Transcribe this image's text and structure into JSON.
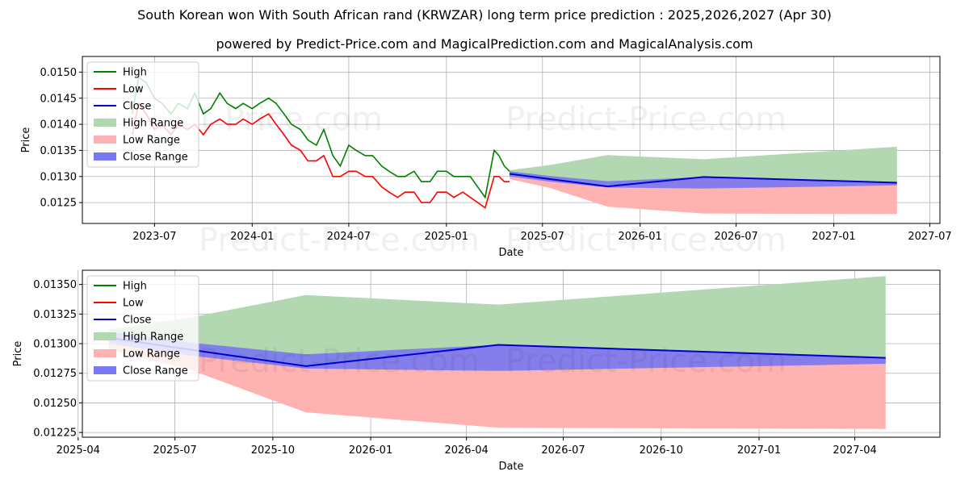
{
  "page": {
    "title": "South Korean won With South African rand (KRWZAR) long term price prediction : 2025,2026,2027 (Apr 30)",
    "subtitle": "powered by Predict-Price.com and MagicalPrediction.com and MagicalAnalysis.com",
    "watermark": "Predict-Price.com"
  },
  "legend": {
    "high": "High",
    "low": "Low",
    "close": "Close",
    "high_range": "High Range",
    "low_range": "Low Range",
    "close_range": "Close Range"
  },
  "colors": {
    "high": "#008000",
    "low": "#ff0000",
    "close": "#0000cc",
    "high_range": "#b2d8b2",
    "low_range": "#ffb2b2",
    "close_range": "#7878f0"
  },
  "chart_data": [
    {
      "type": "line",
      "xlabel": "Date",
      "ylabel": "Price",
      "xlim": [
        "2023-02-15",
        "2027-07-20"
      ],
      "ylim": [
        0.0121,
        0.0153
      ],
      "x_ticks": [
        "2023-07",
        "2024-01",
        "2024-07",
        "2025-01",
        "2025-07",
        "2026-01",
        "2026-07",
        "2027-01",
        "2027-07"
      ],
      "y_ticks": [
        0.0125,
        0.013,
        0.0135,
        0.014,
        0.0145,
        0.015
      ],
      "y_tick_labels": [
        "0.0125",
        "0.0130",
        "0.0135",
        "0.0140",
        "0.0145",
        "0.0150"
      ],
      "grid": true,
      "legend_position": "upper-left",
      "history": {
        "dates": [
          "2023-05-20",
          "2023-06-01",
          "2023-06-15",
          "2023-07-01",
          "2023-07-15",
          "2023-08-01",
          "2023-08-15",
          "2023-09-01",
          "2023-09-15",
          "2023-10-01",
          "2023-10-15",
          "2023-11-01",
          "2023-11-15",
          "2023-12-01",
          "2023-12-15",
          "2024-01-01",
          "2024-01-15",
          "2024-02-01",
          "2024-02-15",
          "2024-03-01",
          "2024-03-15",
          "2024-04-01",
          "2024-04-15",
          "2024-05-01",
          "2024-05-15",
          "2024-06-01",
          "2024-06-15",
          "2024-07-01",
          "2024-07-15",
          "2024-08-01",
          "2024-08-15",
          "2024-09-01",
          "2024-09-15",
          "2024-10-01",
          "2024-10-15",
          "2024-11-01",
          "2024-11-15",
          "2024-12-01",
          "2024-12-15",
          "2025-01-01",
          "2025-01-15",
          "2025-02-01",
          "2025-02-15",
          "2025-03-01",
          "2025-03-15",
          "2025-04-01",
          "2025-04-10",
          "2025-04-20",
          "2025-04-30"
        ],
        "high": [
          0.0142,
          0.0149,
          0.0148,
          0.0145,
          0.0144,
          0.0142,
          0.0144,
          0.0143,
          0.0146,
          0.0142,
          0.0143,
          0.0146,
          0.0144,
          0.0143,
          0.0144,
          0.0143,
          0.0144,
          0.0145,
          0.0144,
          0.0142,
          0.014,
          0.0139,
          0.0137,
          0.0136,
          0.0139,
          0.0134,
          0.0132,
          0.0136,
          0.0135,
          0.0134,
          0.0134,
          0.0132,
          0.0131,
          0.013,
          0.013,
          0.0131,
          0.0129,
          0.0129,
          0.0131,
          0.0131,
          0.013,
          0.013,
          0.013,
          0.0128,
          0.0126,
          0.0135,
          0.0134,
          0.0132,
          0.0131
        ],
        "low": [
          0.0138,
          0.0144,
          0.0142,
          0.0139,
          0.014,
          0.0138,
          0.014,
          0.0139,
          0.014,
          0.0138,
          0.014,
          0.0141,
          0.014,
          0.014,
          0.0141,
          0.014,
          0.0141,
          0.0142,
          0.014,
          0.0138,
          0.0136,
          0.0135,
          0.0133,
          0.0133,
          0.0134,
          0.013,
          0.013,
          0.0131,
          0.0131,
          0.013,
          0.013,
          0.0128,
          0.0127,
          0.0126,
          0.0127,
          0.0127,
          0.0125,
          0.0125,
          0.0127,
          0.0127,
          0.0126,
          0.0127,
          0.0126,
          0.0125,
          0.0124,
          0.013,
          0.013,
          0.0129,
          0.0129
        ]
      },
      "forecast": {
        "dates": [
          "2025-04-30",
          "2025-07-15",
          "2025-11-01",
          "2026-05-01",
          "2027-04-30"
        ],
        "close": [
          0.01305,
          0.01295,
          0.01281,
          0.01299,
          0.01288
        ],
        "high_range": {
          "upper": [
            0.01312,
            0.01322,
            0.01341,
            0.01333,
            0.01357
          ],
          "lower": [
            0.013,
            0.0129,
            0.0128,
            0.01278,
            0.01282
          ]
        },
        "low_range": {
          "upper": [
            0.01305,
            0.01295,
            0.01281,
            0.01299,
            0.01288
          ],
          "lower": [
            0.01295,
            0.01278,
            0.01242,
            0.01229,
            0.01228
          ]
        },
        "close_range": {
          "upper": [
            0.0131,
            0.01301,
            0.01291,
            0.01299,
            0.01288
          ],
          "lower": [
            0.013,
            0.0129,
            0.01279,
            0.01277,
            0.01283
          ]
        }
      }
    },
    {
      "type": "line",
      "xlabel": "Date",
      "ylabel": "Price",
      "xlim": [
        "2025-04-05",
        "2027-06-20"
      ],
      "ylim": [
        0.01221,
        0.01362
      ],
      "x_ticks": [
        "2025-04",
        "2025-07",
        "2025-10",
        "2026-01",
        "2026-04",
        "2026-07",
        "2026-10",
        "2027-01",
        "2027-04"
      ],
      "y_ticks": [
        0.01225,
        0.0125,
        0.01275,
        0.013,
        0.01325,
        0.0135
      ],
      "y_tick_labels": [
        "0.01225",
        "0.01250",
        "0.01275",
        "0.01300",
        "0.01325",
        "0.01350"
      ],
      "grid": true,
      "legend_position": "upper-left"
    }
  ]
}
